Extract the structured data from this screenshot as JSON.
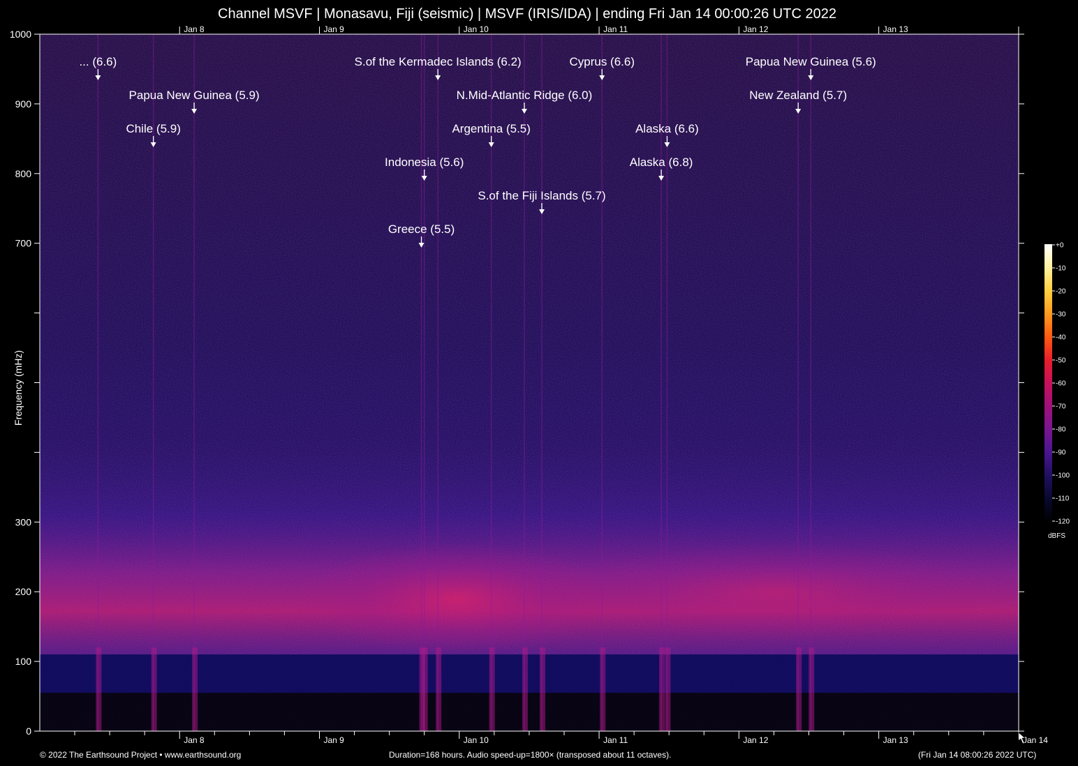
{
  "title": "Channel MSVF | Monasavu, Fiji (seismic) | MSVF (IRIS/IDA) | ending Fri Jan 14 00:00:26 UTC 2022",
  "footer": {
    "left": "© 2022 The Earthsound Project • www.earthsound.org",
    "center": "Duration=168 hours. Audio speed-up=1800× (transposed about 11 octaves).",
    "right": "(Fri Jan 14 08:00:26 2022 UTC)"
  },
  "chart_data": {
    "type": "heatmap",
    "ylabel": "Frequency (mHz)",
    "ylim": [
      0,
      1000
    ],
    "yticks": [
      0,
      100,
      200,
      300,
      700,
      800,
      900,
      1000
    ],
    "yticks_unlabeled": [
      400,
      500,
      600
    ],
    "xlim": [
      "2022-01-07T00:00:26",
      "2022-01-14T00:00:26"
    ],
    "xticks": [
      {
        "label": "Jan 8",
        "date": "2022-01-08T00:00:00"
      },
      {
        "label": "Jan 9",
        "date": "2022-01-09T00:00:00"
      },
      {
        "label": "Jan 10",
        "date": "2022-01-10T00:00:00"
      },
      {
        "label": "Jan 11",
        "date": "2022-01-11T00:00:00"
      },
      {
        "label": "Jan 12",
        "date": "2022-01-12T00:00:00"
      },
      {
        "label": "Jan 13",
        "date": "2022-01-13T00:00:00"
      }
    ],
    "xticks_bottom_extra": [
      {
        "label": "Jan 14",
        "date": "2022-01-14T00:00:00"
      }
    ],
    "colorbar": {
      "unit": "dBFS",
      "ticks": [
        "+0",
        "-10",
        "-20",
        "-30",
        "-40",
        "-50",
        "-60",
        "-70",
        "-80",
        "-90",
        "-100",
        "-110",
        "-120"
      ],
      "colors": [
        "#ffffff",
        "#fff2a0",
        "#ffd040",
        "#ff9a20",
        "#ff5a10",
        "#e81e2a",
        "#c8105a",
        "#a0107a",
        "#7a1590",
        "#4a1590",
        "#201060",
        "#0a0830",
        "#000000"
      ]
    },
    "events": [
      {
        "label": "... (6.6)",
        "date": "2022-01-07T10:00:00"
      },
      {
        "label": "Chile (5.9)",
        "date": "2022-01-07T19:30:00"
      },
      {
        "label": "Papua New Guinea (5.9)",
        "date": "2022-01-08T02:30:00"
      },
      {
        "label": "S.of the Kermadec Islands (6.2)",
        "date": "2022-01-09T20:20:00"
      },
      {
        "label": "Indonesia (5.6)",
        "date": "2022-01-09T18:00:00"
      },
      {
        "label": "Greece (5.5)",
        "date": "2022-01-09T17:30:00"
      },
      {
        "label": "Argentina (5.5)",
        "date": "2022-01-10T05:30:00"
      },
      {
        "label": "N.Mid-Atlantic Ridge (6.0)",
        "date": "2022-01-10T11:10:00"
      },
      {
        "label": "S.of the Fiji Islands (5.7)",
        "date": "2022-01-10T14:10:00"
      },
      {
        "label": "Cyprus (6.6)",
        "date": "2022-01-11T00:30:00"
      },
      {
        "label": "Alaska (6.6)",
        "date": "2022-01-11T11:40:00"
      },
      {
        "label": "Alaska (6.8)",
        "date": "2022-01-11T10:40:00"
      },
      {
        "label": "Papua New Guinea (5.6)",
        "date": "2022-01-12T12:20:00"
      },
      {
        "label": "New Zealand (5.7)",
        "date": "2022-01-12T10:10:00"
      }
    ]
  }
}
